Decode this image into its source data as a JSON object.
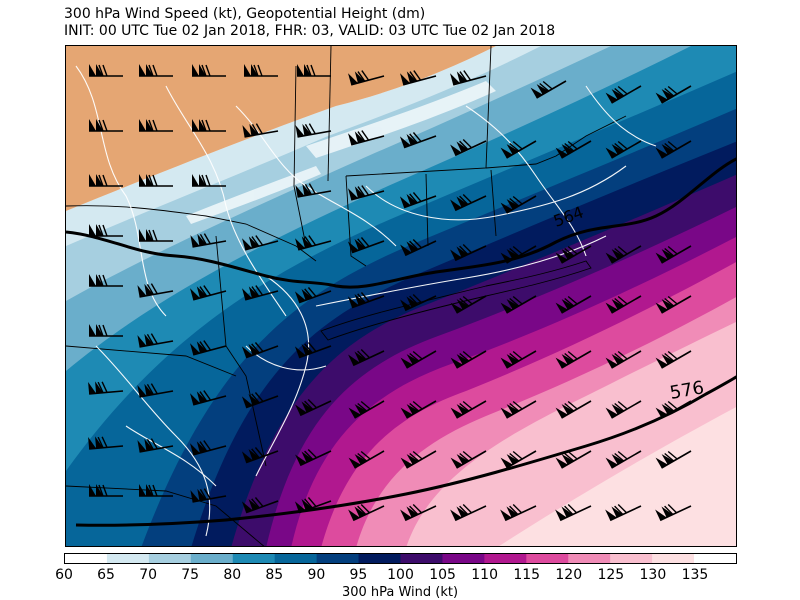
{
  "title_line1": "300 hPa Wind Speed (kt), Geopotential Height (dm)",
  "title_line2": "INIT: 00 UTC Tue 02 Jan 2018, FHR: 03, VALID: 03 UTC Tue 02 Jan 2018",
  "colorbar": {
    "label": "300 hPa Wind (kt)",
    "ticks": [
      "60",
      "65",
      "70",
      "75",
      "80",
      "85",
      "90",
      "95",
      "100",
      "105",
      "110",
      "115",
      "120",
      "125",
      "130",
      "135"
    ],
    "bins": [
      {
        "from": 60,
        "to": 65,
        "color": "#ffffff"
      },
      {
        "from": 65,
        "to": 70,
        "color": "#d4e9f1"
      },
      {
        "from": 70,
        "to": 75,
        "color": "#a6cfe0"
      },
      {
        "from": 75,
        "to": 80,
        "color": "#6aaecb"
      },
      {
        "from": 80,
        "to": 85,
        "color": "#1e8ab4"
      },
      {
        "from": 85,
        "to": 90,
        "color": "#06669a"
      },
      {
        "from": 90,
        "to": 95,
        "color": "#033f7e"
      },
      {
        "from": 95,
        "to": 100,
        "color": "#011b5e"
      },
      {
        "from": 100,
        "to": 105,
        "color": "#3d0c6b"
      },
      {
        "from": 105,
        "to": 110,
        "color": "#790787"
      },
      {
        "from": 110,
        "to": 115,
        "color": "#b1188f"
      },
      {
        "from": 115,
        "to": 120,
        "color": "#dd4b9e"
      },
      {
        "from": 120,
        "to": 125,
        "color": "#f08cb7"
      },
      {
        "from": 125,
        "to": 130,
        "color": "#f9bfcf"
      },
      {
        "from": 130,
        "to": 135,
        "color": "#fde0e2"
      },
      {
        "from": 135,
        "to": 140,
        "color": "#ffffff"
      }
    ]
  },
  "below_threshold_color": "#e5a673",
  "height_contours": [
    "564",
    "576"
  ]
}
